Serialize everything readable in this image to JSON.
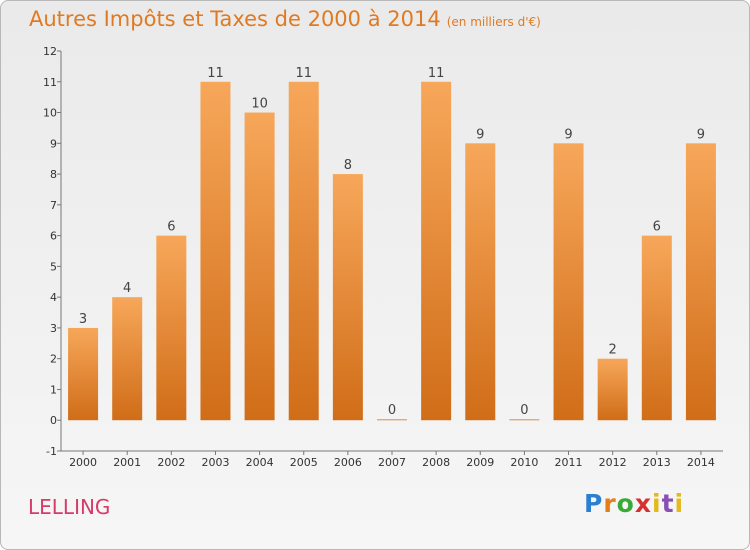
{
  "header": {
    "title": "Autres Impôts et Taxes de 2000 à 2014",
    "subtitle": "(en milliers d'€)"
  },
  "footer": {
    "location": "LELLING",
    "logo": [
      "P",
      "r",
      "o",
      "x",
      "i",
      "t",
      "i"
    ]
  },
  "colors": {
    "title": "#e07a22",
    "bar_top": "#f7a75a",
    "bar_bottom": "#d06d18",
    "location": "#d63b6a"
  },
  "chart_data": {
    "type": "bar",
    "categories": [
      "2000",
      "2001",
      "2002",
      "2003",
      "2004",
      "2005",
      "2006",
      "2007",
      "2008",
      "2009",
      "2010",
      "2011",
      "2012",
      "2013",
      "2014"
    ],
    "values": [
      3,
      4,
      6,
      11,
      10,
      11,
      8,
      0,
      11,
      9,
      0,
      9,
      2,
      6,
      9
    ],
    "ylim": [
      -1,
      12
    ],
    "yticks": [
      "-1",
      "0",
      "1",
      "2",
      "3",
      "4",
      "5",
      "6",
      "7",
      "8",
      "9",
      "10",
      "11",
      "12"
    ],
    "grid": false
  }
}
